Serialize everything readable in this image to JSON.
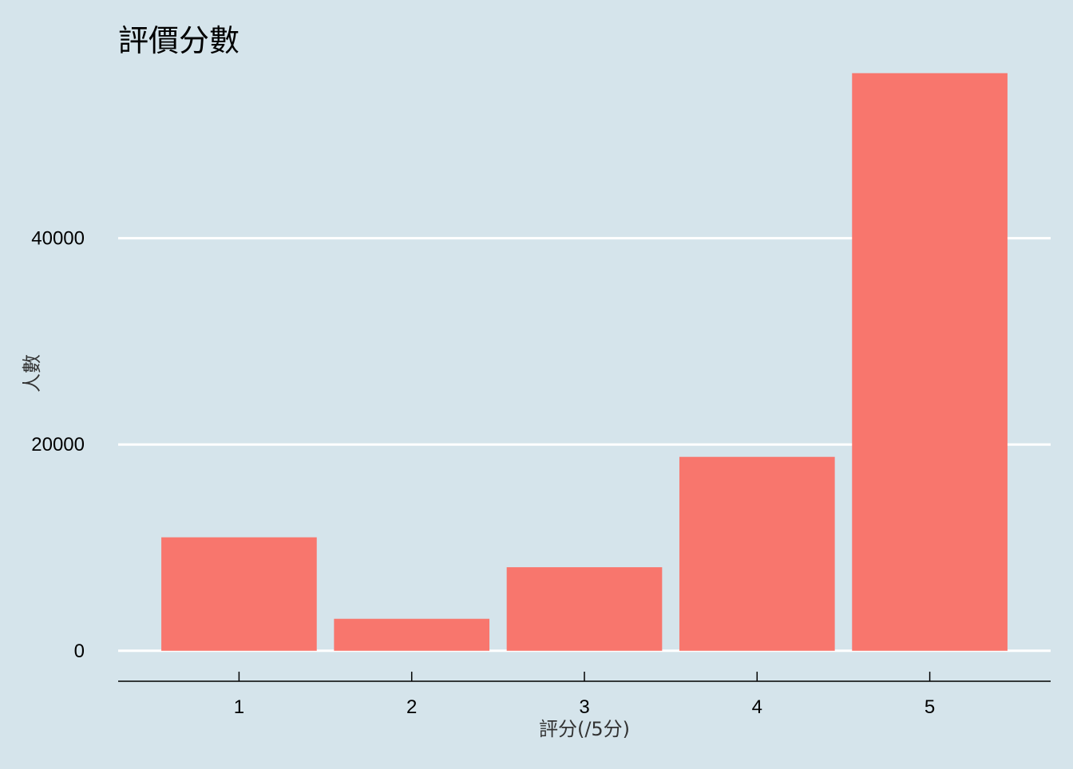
{
  "chart_data": {
    "type": "bar",
    "title": "評價分數",
    "xlabel": "評分(/5分)",
    "ylabel": "人數",
    "categories": [
      "1",
      "2",
      "3",
      "4",
      "5"
    ],
    "values": [
      11000,
      3100,
      8100,
      18800,
      56000
    ],
    "ylim": [
      -2800,
      60000
    ],
    "yticks": [
      0,
      20000,
      40000
    ],
    "ytick_labels": [
      "0",
      "20000",
      "40000"
    ],
    "grid": "horizontal-major",
    "legend": "none"
  },
  "colors": {
    "background": "#d5e4eb",
    "bar": "#f8766d",
    "grid": "#ffffff",
    "axis": "#000000"
  }
}
